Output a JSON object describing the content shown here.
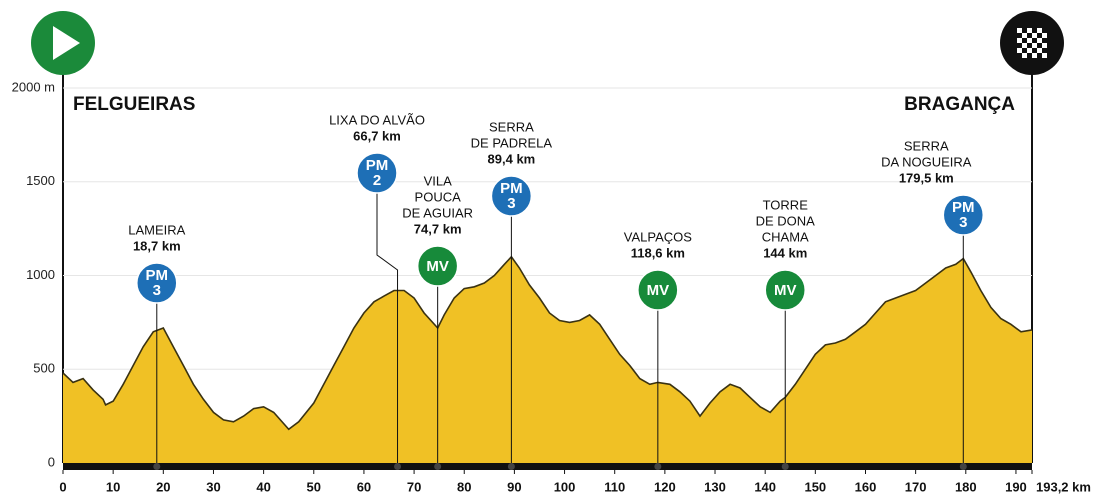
{
  "chart_data": {
    "type": "area",
    "start": "FELGUEIRAS",
    "finish": "BRAGANÇA",
    "color": "#f0c125",
    "line_color": "#3a3212",
    "grid": true,
    "xlim": [
      0,
      193.2
    ],
    "ylim": [
      0,
      2000
    ],
    "xticks": [
      0,
      10,
      20,
      30,
      40,
      50,
      60,
      70,
      80,
      90,
      100,
      110,
      120,
      130,
      140,
      150,
      160,
      170,
      180,
      190,
      {
        "value": 193.2,
        "label": "193,2 km"
      }
    ],
    "yticks": [
      0,
      500,
      1000,
      1500,
      {
        "value": 2000,
        "label": "2000 m"
      }
    ],
    "x": [
      0,
      2,
      4,
      6,
      8,
      8.5,
      10,
      12,
      14,
      16,
      18,
      20,
      22,
      24,
      26,
      28,
      30,
      32,
      34,
      36,
      38,
      40,
      42,
      44,
      45,
      47,
      50,
      52,
      54,
      56,
      58,
      60,
      62,
      64,
      66,
      68,
      70,
      72,
      74.7,
      76,
      78,
      80,
      82,
      84,
      86,
      88,
      89.4,
      91,
      93,
      95,
      97,
      99,
      101,
      103,
      105,
      107,
      109,
      111,
      113,
      115,
      117,
      118.6,
      121,
      123,
      125,
      127,
      129,
      131,
      133,
      135,
      137,
      139,
      141,
      143,
      144,
      146,
      148,
      150,
      152,
      154,
      156,
      158,
      160,
      162,
      164,
      166,
      168,
      170,
      172,
      174,
      176,
      178,
      179.5,
      181,
      183,
      185,
      187,
      189,
      191,
      193.2
    ],
    "values": [
      480,
      430,
      450,
      390,
      340,
      310,
      330,
      420,
      520,
      620,
      700,
      720,
      620,
      520,
      420,
      340,
      270,
      230,
      220,
      250,
      290,
      300,
      270,
      210,
      180,
      220,
      320,
      420,
      520,
      620,
      720,
      800,
      860,
      890,
      920,
      920,
      880,
      800,
      720,
      790,
      880,
      930,
      940,
      960,
      1000,
      1060,
      1100,
      1040,
      950,
      880,
      800,
      760,
      750,
      760,
      790,
      740,
      660,
      580,
      520,
      450,
      420,
      430,
      420,
      380,
      330,
      250,
      320,
      380,
      420,
      400,
      350,
      300,
      270,
      330,
      350,
      420,
      500,
      580,
      630,
      640,
      660,
      700,
      740,
      800,
      860,
      880,
      900,
      920,
      960,
      1000,
      1040,
      1060,
      1090,
      1020,
      920,
      830,
      770,
      740,
      700,
      710
    ],
    "markers": [
      {
        "name": [
          "LAMEIRA"
        ],
        "km": {
          "value": 18.7,
          "label": "18,7 km"
        },
        "badge": [
          "PM",
          "3"
        ],
        "kind": "PM"
      },
      {
        "name": [
          "LIXA DO ALVÃO"
        ],
        "km": {
          "value": 66.7,
          "label": "66,7 km"
        },
        "badge": [
          "PM",
          "2"
        ],
        "kind": "PM"
      },
      {
        "name": [
          "VILA",
          "POUCA",
          "DE AGUIAR"
        ],
        "km": {
          "value": 74.7,
          "label": "74,7 km"
        },
        "badge": [
          "MV"
        ],
        "kind": "MV"
      },
      {
        "name": [
          "SERRA",
          "DE PADRELA"
        ],
        "km": {
          "value": 89.4,
          "label": "89,4 km"
        },
        "badge": [
          "PM",
          "3"
        ],
        "kind": "PM"
      },
      {
        "name": [
          "VALPAÇOS"
        ],
        "km": {
          "value": 118.6,
          "label": "118,6 km"
        },
        "badge": [
          "MV"
        ],
        "kind": "MV"
      },
      {
        "name": [
          "TORRE",
          "DE DONA",
          "CHAMA"
        ],
        "km": {
          "value": 144,
          "label": "144 km"
        },
        "badge": [
          "MV"
        ],
        "kind": "MV"
      },
      {
        "name": [
          "SERRA",
          "DA NOGUEIRA"
        ],
        "km": {
          "value": 179.5,
          "label": "179,5 km"
        },
        "badge": [
          "PM",
          "3"
        ],
        "kind": "PM"
      }
    ],
    "badge_colors": {
      "PM": "#1e6fb6",
      "MV": "#178a3a"
    }
  }
}
